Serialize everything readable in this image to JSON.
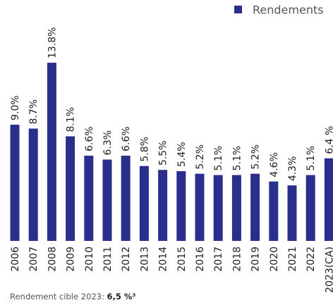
{
  "chart_data": {
    "type": "bar",
    "categories": [
      "2006",
      "2007",
      "2008",
      "2009",
      "2010",
      "2011",
      "2012",
      "2013",
      "2014",
      "2015",
      "2016",
      "2017",
      "2018",
      "2019",
      "2020",
      "2021",
      "2022",
      "2023(CA)"
    ],
    "series": [
      {
        "name": "Rendements",
        "color": "#2b2f8c",
        "values": [
          9.0,
          8.7,
          13.8,
          8.1,
          6.6,
          6.3,
          6.6,
          5.8,
          5.5,
          5.4,
          5.2,
          5.1,
          5.1,
          5.2,
          4.6,
          4.3,
          5.1,
          6.4
        ],
        "value_labels": [
          "9.0%",
          "8.7%",
          "13.8%",
          "8.1%",
          "6.6%",
          "6.3%",
          "6.6%",
          "5.8%",
          "5.5%",
          "5.4%",
          "5.2%",
          "5.1%",
          "5.1%",
          "5.2%",
          "4.6%",
          "4.3%",
          "5.1%",
          "6,4 %"
        ]
      }
    ],
    "footnote": {
      "text": "Rendement cible 2023: ",
      "bold": "6,5 %³"
    }
  }
}
